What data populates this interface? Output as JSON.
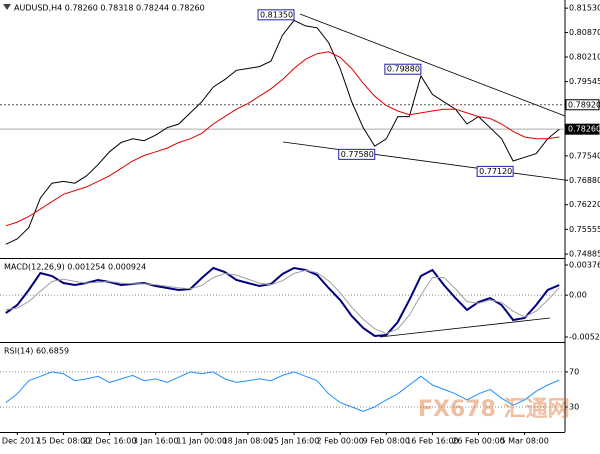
{
  "chart_data": [
    {
      "type": "line",
      "title": "AUDUSD,H4  0.78260 0.78318 0.78244 0.78260",
      "series": [
        {
          "color": "#000000",
          "values": [
            0.7515,
            0.753,
            0.756,
            0.764,
            0.768,
            0.7685,
            0.768,
            0.77,
            0.773,
            0.7765,
            0.779,
            0.78,
            0.7795,
            0.781,
            0.783,
            0.784,
            0.787,
            0.79,
            0.794,
            0.796,
            0.7985,
            0.799,
            0.7995,
            0.801,
            0.808,
            0.812,
            0.8105,
            0.81,
            0.806,
            0.799,
            0.79,
            0.783,
            0.778,
            0.78,
            0.786,
            0.786,
            0.797,
            0.792,
            0.79,
            0.788,
            0.784,
            0.786,
            0.783,
            0.78,
            0.774,
            0.775,
            0.776,
            0.78,
            0.7826
          ]
        },
        {
          "color": "#e00000",
          "values": [
            0.7565,
            0.7575,
            0.759,
            0.761,
            0.763,
            0.765,
            0.766,
            0.767,
            0.7685,
            0.77,
            0.772,
            0.774,
            0.7755,
            0.7765,
            0.7775,
            0.779,
            0.78,
            0.7815,
            0.784,
            0.786,
            0.788,
            0.7895,
            0.7915,
            0.7935,
            0.796,
            0.799,
            0.8015,
            0.803,
            0.8035,
            0.802,
            0.799,
            0.795,
            0.7915,
            0.789,
            0.7875,
            0.7865,
            0.787,
            0.7875,
            0.788,
            0.788,
            0.787,
            0.786,
            0.7855,
            0.784,
            0.782,
            0.7805,
            0.78,
            0.78,
            0.7805
          ]
        }
      ],
      "ylim": [
        0.7478,
        0.8175
      ],
      "yticks": [
        {
          "value": 0.8153,
          "label": "0.81530"
        },
        {
          "value": 0.8087,
          "label": "0.80870"
        },
        {
          "value": 0.8021,
          "label": "0.80210"
        },
        {
          "value": 0.79545,
          "label": "0.79545"
        },
        {
          "value": 0.7754,
          "label": "0.77540"
        },
        {
          "value": 0.7688,
          "label": "0.76880"
        },
        {
          "value": 0.7622,
          "label": "0.76220"
        },
        {
          "value": 0.75555,
          "label": "0.75555"
        },
        {
          "value": 0.74885,
          "label": "0.74885"
        }
      ],
      "levels": [
        {
          "value": 0.7892,
          "label": "0.78920",
          "dashed": true
        },
        {
          "value": 0.7826,
          "label": "0.78260",
          "dashed": false
        }
      ],
      "annotations": [
        {
          "text": "0.81350",
          "value": 0.8135,
          "x": 25
        },
        {
          "text": "0.79880",
          "value": 0.7988,
          "x": 36
        },
        {
          "text": "0.77580",
          "value": 0.7758,
          "x": 32
        },
        {
          "text": "0.77120",
          "value": 0.7712,
          "x": 44
        }
      ]
    },
    {
      "type": "line",
      "title": "MACD(12,26,9) 0.001254 0.000924",
      "series": [
        {
          "color": "#000080",
          "values": [
            -0.00222,
            -0.00123,
            0.00064,
            0.00276,
            0.00239,
            0.00152,
            0.00127,
            0.00152,
            0.00189,
            0.00164,
            0.00127,
            0.00139,
            0.00152,
            0.00114,
            0.00089,
            0.00064,
            0.00077,
            0.00214,
            0.00339,
            0.00289,
            0.00189,
            0.00152,
            0.00114,
            0.00139,
            0.00264,
            0.00339,
            0.00314,
            0.00251,
            0.00089,
            -0.0006,
            -0.0026,
            -0.0041,
            -0.00509,
            -0.00497,
            -0.00335,
            -0.0006,
            0.00239,
            0.00314,
            0.00127,
            -0.00036,
            -0.00185,
            -0.00085,
            -0.00036,
            -0.00123,
            -0.0031,
            -0.00285,
            -0.00123,
            0.00064,
            0.001254
          ]
        },
        {
          "color": "#a0a0a0",
          "values": [
            -0.0018,
            -0.0016,
            -0.0008,
            0.0005,
            0.0017,
            0.002,
            0.0017,
            0.0015,
            0.0016,
            0.0017,
            0.0015,
            0.0014,
            0.0014,
            0.0013,
            0.0011,
            0.0009,
            0.0008,
            0.0012,
            0.0022,
            0.0027,
            0.0025,
            0.002,
            0.0015,
            0.0013,
            0.0018,
            0.0027,
            0.0031,
            0.0028,
            0.0018,
            0.0003,
            -0.0015,
            -0.003,
            -0.0042,
            -0.0048,
            -0.0042,
            -0.0025,
            0.0,
            0.0022,
            0.0022,
            0.0008,
            -0.0008,
            -0.001,
            -0.0006,
            -0.0009,
            -0.002,
            -0.0027,
            -0.002,
            -0.0006,
            0.000924
          ]
        }
      ],
      "ylim": [
        -0.00584,
        0.00451
      ],
      "yticks": [
        0.003762,
        {
          "value": 0,
          "label": "0.00"
        },
        -0.005216
      ],
      "zero_line": true
    },
    {
      "type": "line",
      "title": "RSI(14) 60.6859",
      "series": [
        {
          "color": "#1e90ff",
          "values": [
            35,
            45,
            60,
            65,
            70,
            68,
            60,
            62,
            65,
            58,
            62,
            66,
            60,
            62,
            58,
            64,
            70,
            68,
            70,
            62,
            58,
            60,
            62,
            60,
            66,
            70,
            65,
            60,
            45,
            35,
            30,
            25,
            30,
            38,
            45,
            55,
            65,
            55,
            50,
            45,
            38,
            45,
            50,
            40,
            32,
            38,
            48,
            55,
            60.6859
          ]
        }
      ],
      "ylim": [
        1.4,
        103
      ],
      "yticks": [
        70,
        30
      ],
      "grid": true,
      "categories": [
        null,
        "8 Dec 2017",
        null,
        null,
        null,
        "15 Dec 08:00",
        null,
        null,
        null,
        "22 Dec 16:00",
        null,
        null,
        null,
        "3 Jan 16:00",
        null,
        null,
        null,
        "11 Jan 00:00",
        null,
        null,
        null,
        "18 Jan 08:00",
        null,
        null,
        null,
        "25 Jan 16:00",
        null,
        null,
        null,
        "2 Feb 00:00",
        null,
        null,
        null,
        "9 Feb 08:00",
        null,
        null,
        null,
        "16 Feb 16:00",
        null,
        null,
        null,
        "26 Feb 00:00",
        null,
        null,
        null,
        "5 Mar 08:00",
        null,
        null,
        null
      ],
      "watermark": "FX678 汇通网"
    }
  ]
}
